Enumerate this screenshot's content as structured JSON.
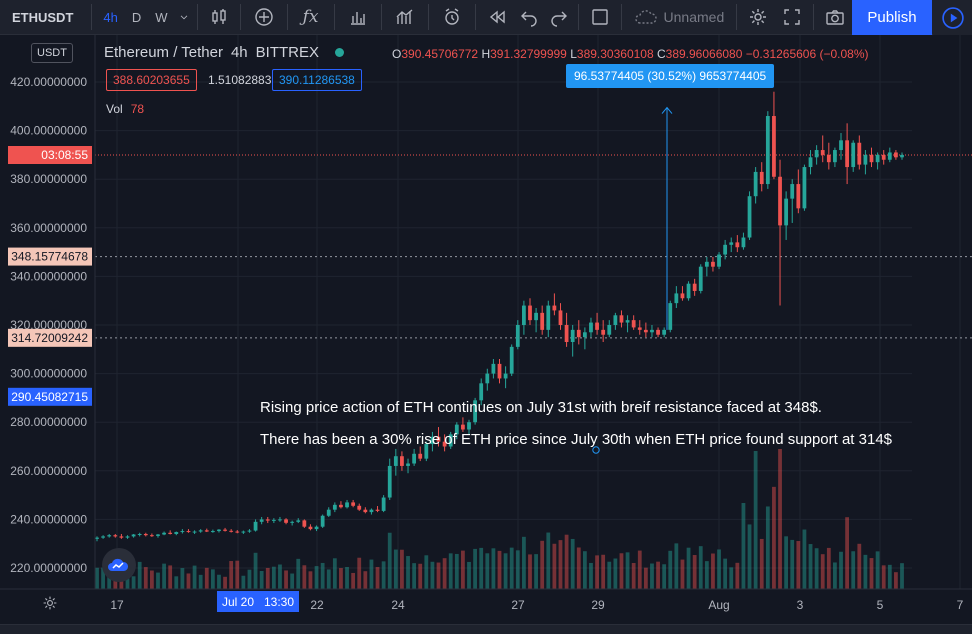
{
  "toolbar": {
    "symbol": "ETHUSDT",
    "resolutions": [
      "4h",
      "D",
      "W"
    ],
    "active_resolution": "4h",
    "layout_name": "Unnamed",
    "publish_label": "Publish",
    "icons": [
      "dropdown-icon",
      "candles-icon",
      "add-indicator-icon",
      "fx-icon",
      "bar-chart-icon",
      "compare-icon",
      "alert-icon",
      "rewind-icon",
      "undo-icon",
      "redo-icon",
      "fullscreen-box-icon",
      "cloud-icon",
      "settings-icon",
      "expand-icon",
      "camera-icon",
      "play-icon"
    ]
  },
  "legend": {
    "title": "Ethereum / Tether",
    "interval": "4h",
    "exchange": "BITTREX",
    "o_label": "O",
    "o_value": "390.45706772",
    "h_label": "H",
    "h_value": "391.32799999",
    "l_label": "L",
    "l_value": "389.30360108",
    "c_label": "C",
    "c_value": "389.96066080",
    "change": "−0.31265606 (−0.08%)",
    "bid": "388.60203655",
    "spread": "1.51082883",
    "ask": "390.11286538",
    "vol_label": "Vol",
    "vol_value": "78",
    "currency": "USDT"
  },
  "price_axis": {
    "ticks": [
      "420.00000000",
      "400.00000000",
      "380.00000000",
      "360.00000000",
      "340.00000000",
      "320.00000000",
      "300.00000000",
      "280.00000000",
      "260.00000000",
      "240.00000000",
      "220.00000000"
    ],
    "current_countdown": "03:08:55",
    "level_348": "348.15774678",
    "level_314": "314.72009242",
    "crosshair_price": "290.45082715"
  },
  "time_axis": {
    "ticks": [
      "17",
      "Jul 20",
      "22",
      "24",
      "27",
      "29",
      "Aug",
      "3",
      "5",
      "7"
    ],
    "crosshair_label_date": "Jul 20",
    "crosshair_label_time": "13:30"
  },
  "measure_label": "96.53774405 (30.52%) 9653774405",
  "annotations": [
    "Rising price action of ETH continues on July 31st with breif resistance faced at 348$.",
    "There has been a 30% rise of ETH price since July 30th when ETH price found support at 314$"
  ],
  "colors": {
    "up": "#26a69a",
    "down": "#ef5350",
    "accent": "#2962ff",
    "measure": "#2196f3"
  },
  "chart_data": {
    "type": "candlestick",
    "title": "Ethereum / Tether 4h BITTREX",
    "ylabel": "USDT",
    "ylim": [
      210,
      430
    ],
    "x_ticks": [
      "17",
      "Jul 20",
      "22",
      "24",
      "27",
      "29",
      "Aug",
      "3",
      "5",
      "7"
    ],
    "horizontal_levels": [
      348.15774678,
      314.72009242
    ],
    "candles": [
      [
        232,
        233,
        231,
        232.5
      ],
      [
        232.5,
        233.5,
        232,
        233
      ],
      [
        233,
        234,
        232.5,
        233.5
      ],
      [
        233.5,
        234,
        232.5,
        233
      ],
      [
        233,
        234,
        232,
        232.5
      ],
      [
        232.5,
        233.5,
        232,
        233
      ],
      [
        233,
        234,
        232.5,
        233.8
      ],
      [
        233.8,
        234.5,
        233,
        234
      ],
      [
        234,
        234.5,
        233,
        233.5
      ],
      [
        233.5,
        234.2,
        232.8,
        233.2
      ],
      [
        233.2,
        234,
        232.5,
        233.8
      ],
      [
        233.8,
        235,
        233.5,
        234.5
      ],
      [
        234.5,
        235.5,
        233.8,
        234
      ],
      [
        234,
        235,
        233.5,
        234.8
      ],
      [
        234.8,
        236,
        234.2,
        235.2
      ],
      [
        235.2,
        236,
        234.5,
        234.8
      ],
      [
        234.8,
        235.5,
        234,
        235
      ],
      [
        235,
        236,
        234.5,
        235.5
      ],
      [
        235.5,
        236.2,
        234.8,
        235
      ],
      [
        235,
        235.8,
        234.5,
        235.2
      ],
      [
        235.2,
        236,
        234.6,
        235.8
      ],
      [
        235.8,
        236.5,
        235,
        235.3
      ],
      [
        235.3,
        236,
        234.6,
        235
      ],
      [
        235,
        235.6,
        234.3,
        234.6
      ],
      [
        234.6,
        235.4,
        234,
        235
      ],
      [
        235,
        236,
        234.5,
        235.4
      ],
      [
        235.4,
        240,
        235,
        239
      ],
      [
        239,
        241,
        238,
        240
      ],
      [
        240,
        241,
        238.5,
        239.5
      ],
      [
        239.5,
        240.5,
        238.5,
        239.8
      ],
      [
        239.8,
        241,
        239,
        240
      ],
      [
        240,
        240.5,
        238,
        238.6
      ],
      [
        238.6,
        239.5,
        237.5,
        239
      ],
      [
        239,
        240.5,
        238.5,
        239.6
      ],
      [
        239.6,
        240,
        236.5,
        237
      ],
      [
        237,
        238,
        235.5,
        236
      ],
      [
        236,
        237.5,
        235.2,
        237
      ],
      [
        237,
        242,
        236.5,
        241.5
      ],
      [
        241.5,
        245,
        241,
        244
      ],
      [
        244,
        247,
        243,
        246
      ],
      [
        246,
        247.5,
        244.5,
        245
      ],
      [
        245,
        248,
        244.5,
        247
      ],
      [
        247,
        248,
        245,
        245.6
      ],
      [
        245.6,
        246.5,
        243.5,
        244
      ],
      [
        244,
        245,
        242.5,
        243
      ],
      [
        243,
        244.5,
        242,
        244
      ],
      [
        244,
        245.5,
        243,
        243.5
      ],
      [
        243.5,
        250,
        243,
        249
      ],
      [
        249,
        265,
        248,
        262
      ],
      [
        262,
        269,
        258,
        266
      ],
      [
        266,
        268,
        260,
        262
      ],
      [
        262,
        265,
        259,
        263
      ],
      [
        263,
        269,
        262,
        267
      ],
      [
        267,
        270,
        264,
        265
      ],
      [
        265,
        272,
        264,
        271
      ],
      [
        271,
        276,
        268,
        274
      ],
      [
        274,
        278,
        270,
        272
      ],
      [
        272,
        275,
        268,
        270
      ],
      [
        270,
        276,
        269,
        275
      ],
      [
        275,
        280,
        273,
        279
      ],
      [
        279,
        282,
        276,
        277
      ],
      [
        277,
        281,
        275,
        280
      ],
      [
        280,
        290,
        279,
        289
      ],
      [
        289,
        298,
        287,
        296
      ],
      [
        296,
        302,
        293,
        300
      ],
      [
        300,
        306,
        298,
        304
      ],
      [
        304,
        306,
        296,
        298
      ],
      [
        298,
        303,
        294,
        300
      ],
      [
        300,
        312,
        299,
        311
      ],
      [
        311,
        322,
        310,
        320
      ],
      [
        320,
        330,
        316,
        328
      ],
      [
        328,
        331,
        320,
        322
      ],
      [
        322,
        327,
        317,
        325
      ],
      [
        325,
        328,
        316,
        318
      ],
      [
        318,
        330,
        315,
        328
      ],
      [
        328,
        333,
        324,
        326
      ],
      [
        326,
        329,
        318,
        320
      ],
      [
        320,
        325,
        311,
        313
      ],
      [
        313,
        320,
        307,
        318
      ],
      [
        318,
        322,
        312,
        315
      ],
      [
        315,
        319,
        310,
        317
      ],
      [
        317,
        323,
        315,
        321
      ],
      [
        321,
        325,
        316,
        318
      ],
      [
        318,
        322,
        313,
        316
      ],
      [
        316,
        322,
        315,
        320
      ],
      [
        320,
        325,
        318,
        324
      ],
      [
        324,
        326,
        319,
        321
      ],
      [
        321,
        324,
        317,
        322
      ],
      [
        322,
        324,
        318,
        319
      ],
      [
        319,
        322,
        316,
        318
      ],
      [
        318,
        321,
        315,
        317
      ],
      [
        317,
        320,
        315,
        318
      ],
      [
        318,
        319,
        315,
        316
      ],
      [
        316,
        319,
        315,
        318
      ],
      [
        318,
        330,
        317,
        329
      ],
      [
        329,
        336,
        327,
        333
      ],
      [
        333,
        336,
        330,
        331
      ],
      [
        331,
        338,
        330,
        337
      ],
      [
        337,
        339,
        332,
        334
      ],
      [
        334,
        345,
        333,
        344
      ],
      [
        344,
        348,
        340,
        346
      ],
      [
        346,
        348,
        342,
        344
      ],
      [
        344,
        350,
        343,
        349
      ],
      [
        349,
        355,
        347,
        353
      ],
      [
        353,
        356,
        350,
        354
      ],
      [
        354,
        357,
        350,
        352
      ],
      [
        352,
        358,
        351,
        356
      ],
      [
        356,
        375,
        355,
        373
      ],
      [
        373,
        385,
        370,
        383
      ],
      [
        383,
        387,
        375,
        378
      ],
      [
        378,
        408,
        376,
        406
      ],
      [
        406,
        416,
        380,
        381
      ],
      [
        381,
        388,
        328,
        361
      ],
      [
        361,
        375,
        355,
        372
      ],
      [
        372,
        380,
        362,
        378
      ],
      [
        378,
        384,
        366,
        368
      ],
      [
        368,
        386,
        367,
        385
      ],
      [
        385,
        392,
        382,
        389
      ],
      [
        389,
        394,
        386,
        392
      ],
      [
        392,
        398,
        387,
        390
      ],
      [
        390,
        395,
        384,
        387
      ],
      [
        387,
        393,
        385,
        392
      ],
      [
        392,
        399,
        388,
        396
      ],
      [
        396,
        403,
        378,
        385
      ],
      [
        385,
        396,
        383,
        395
      ],
      [
        395,
        398,
        384,
        386
      ],
      [
        386,
        392,
        382,
        390
      ],
      [
        390,
        393,
        385,
        387
      ],
      [
        387,
        391,
        384,
        390
      ],
      [
        390,
        392,
        386,
        388
      ],
      [
        388,
        393,
        387,
        391
      ],
      [
        391,
        392,
        388,
        389
      ],
      [
        389,
        391,
        388,
        390
      ]
    ],
    "volume_scale_note": "relative"
  }
}
